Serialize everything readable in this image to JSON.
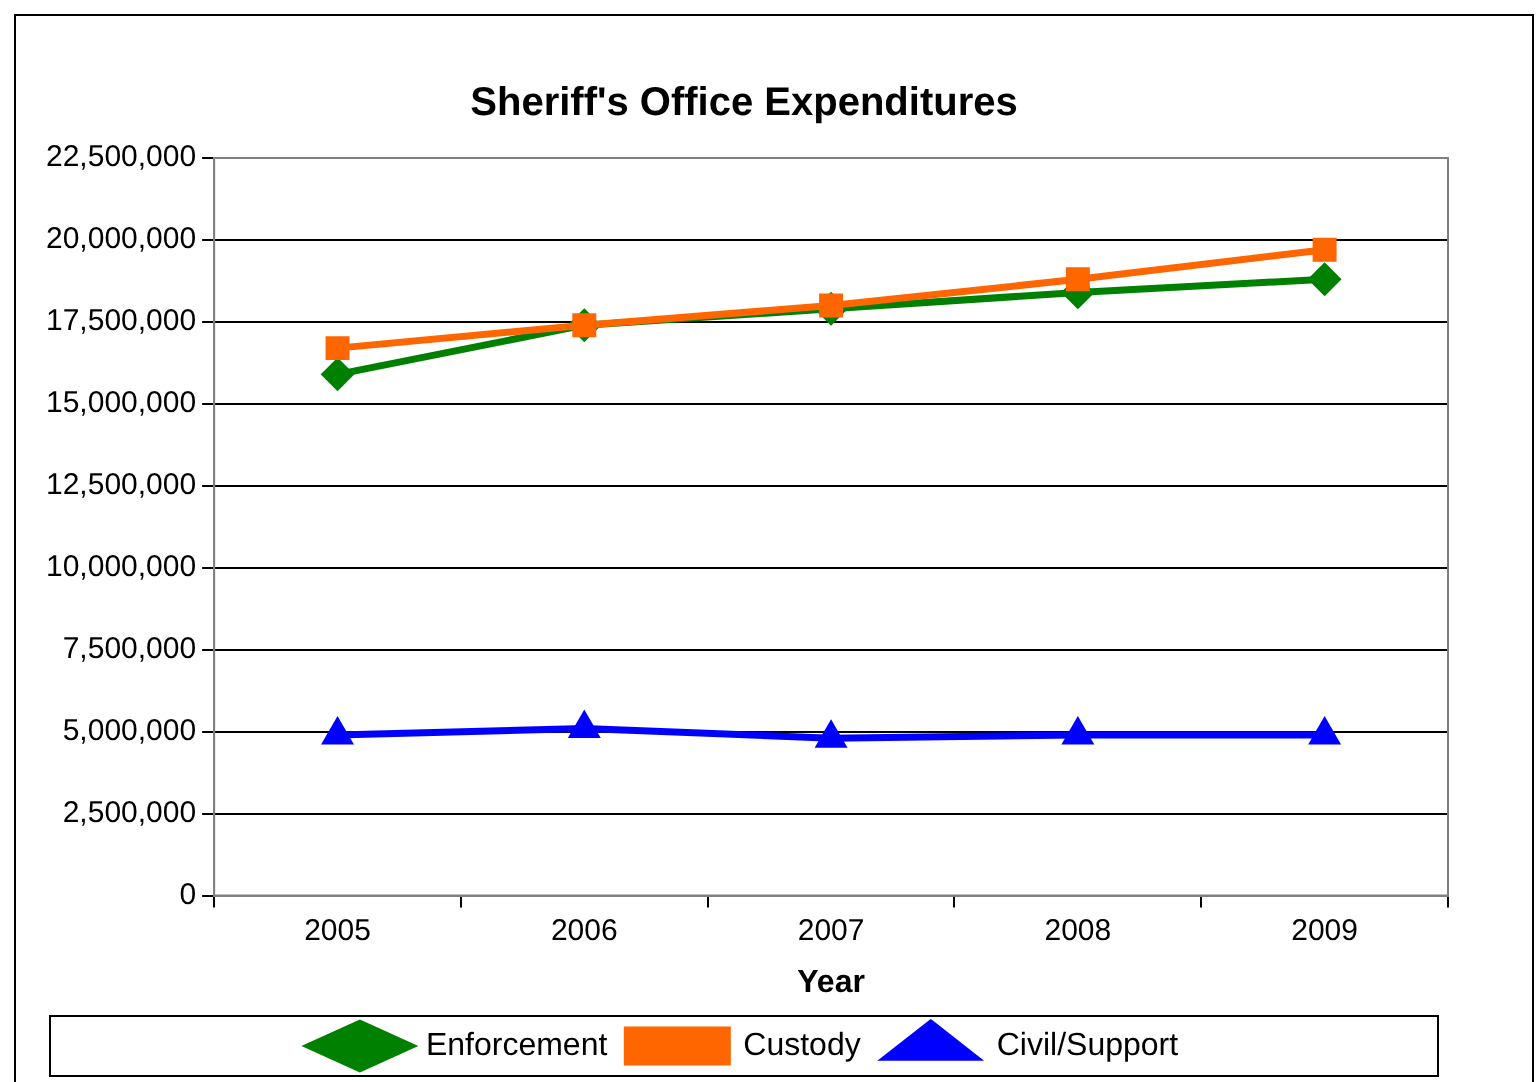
{
  "chart_data": {
    "type": "line",
    "title": "Sheriff's Office Expenditures",
    "xlabel": "Year",
    "categories": [
      "2005",
      "2006",
      "2007",
      "2008",
      "2009"
    ],
    "series": [
      {
        "name": "Enforcement",
        "color": "#008000",
        "marker": "diamond",
        "values": [
          15900000,
          17400000,
          17900000,
          18400000,
          18800000
        ]
      },
      {
        "name": "Custody",
        "color": "#ff6600",
        "marker": "square",
        "values": [
          16700000,
          17400000,
          18000000,
          18800000,
          19700000
        ]
      },
      {
        "name": "Civil/Support",
        "color": "#0000ff",
        "marker": "triangle",
        "values": [
          4900000,
          5100000,
          4800000,
          4900000,
          4900000
        ]
      }
    ],
    "ylim": [
      0,
      22500000
    ],
    "yticks": [
      0,
      {
        "value": 2500000,
        "label": "2,500,000"
      },
      {
        "value": 5000000,
        "label": "5,000,000"
      },
      {
        "value": 7500000,
        "label": "7,500,000"
      },
      {
        "value": 10000000,
        "label": "10,000,000"
      },
      {
        "value": 12500000,
        "label": "12,500,000"
      },
      {
        "value": 15000000,
        "label": "15,000,000"
      },
      {
        "value": 17500000,
        "label": "17,500,000"
      },
      {
        "value": 20000000,
        "label": "20,000,000"
      },
      {
        "value": 22500000,
        "label": "22,500,000"
      }
    ],
    "grid": "y",
    "legend": "bottom",
    "line_style": "solid"
  }
}
